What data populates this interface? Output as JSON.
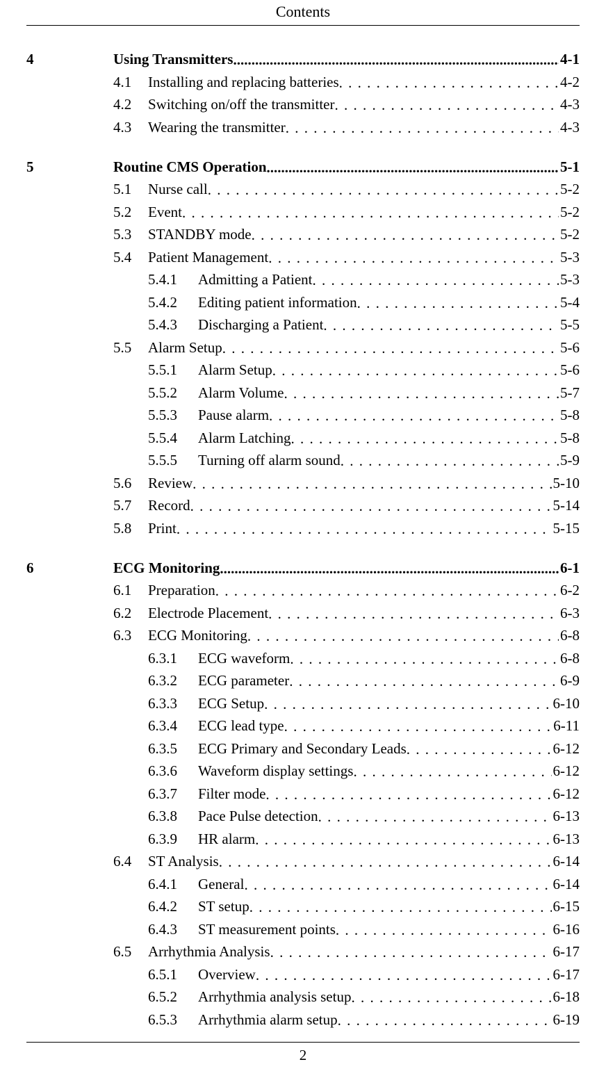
{
  "header": {
    "title": "Contents"
  },
  "footer": {
    "page_number": "2"
  },
  "leader_dots_bold": ".........................................................................................................................................................",
  "leader_dots": ". . . . . . . . . . . . . . . . . . . . . . . . . . . . . . . . . . . . . . . . . . . . . . . . . . . . . . . . . . . . . . . . . . . . . . . . . . . . . . . . . . . . . . . . . . . . . . . .",
  "toc": [
    {
      "level": 0,
      "num": "4",
      "label": "Using Transmitters",
      "page": "4-1"
    },
    {
      "level": 1,
      "num": "4.1",
      "label": "Installing and replacing batteries",
      "page": "4-2"
    },
    {
      "level": 1,
      "num": "4.2",
      "label": "Switching on/off the transmitter",
      "page": "4-3"
    },
    {
      "level": 1,
      "num": "4.3",
      "label": "Wearing the transmitter",
      "page": "4-3"
    },
    {
      "level": 0,
      "num": "5",
      "label": "Routine CMS Operation",
      "page": "5-1"
    },
    {
      "level": 1,
      "num": "5.1",
      "label": "Nurse call",
      "page": "5-2"
    },
    {
      "level": 1,
      "num": "5.2",
      "label": "Event",
      "page": "5-2"
    },
    {
      "level": 1,
      "num": "5.3",
      "label": "STANDBY mode",
      "page": "5-2"
    },
    {
      "level": 1,
      "num": "5.4",
      "label": "Patient Management",
      "page": "5-3"
    },
    {
      "level": 2,
      "num": "5.4.1",
      "label": "Admitting a Patient",
      "page": "5-3"
    },
    {
      "level": 2,
      "num": "5.4.2",
      "label": "Editing patient information",
      "page": "5-4"
    },
    {
      "level": 2,
      "num": "5.4.3",
      "label": "Discharging a Patient",
      "page": "5-5"
    },
    {
      "level": 1,
      "num": "5.5",
      "label": "Alarm Setup",
      "page": "5-6"
    },
    {
      "level": 2,
      "num": "5.5.1",
      "label": "Alarm Setup",
      "page": "5-6"
    },
    {
      "level": 2,
      "num": "5.5.2",
      "label": "Alarm Volume",
      "page": "5-7"
    },
    {
      "level": 2,
      "num": "5.5.3",
      "label": "Pause alarm",
      "page": "5-8"
    },
    {
      "level": 2,
      "num": "5.5.4",
      "label": "Alarm Latching",
      "page": "5-8"
    },
    {
      "level": 2,
      "num": "5.5.5",
      "label": "Turning off alarm sound",
      "page": "5-9"
    },
    {
      "level": 1,
      "num": "5.6",
      "label": "Review",
      "page": "5-10"
    },
    {
      "level": 1,
      "num": "5.7",
      "label": "Record",
      "page": "5-14"
    },
    {
      "level": 1,
      "num": "5.8",
      "label": "Print",
      "page": "5-15"
    },
    {
      "level": 0,
      "num": "6",
      "label": "ECG Monitoring",
      "page": "6-1"
    },
    {
      "level": 1,
      "num": "6.1",
      "label": "Preparation",
      "page": "6-2"
    },
    {
      "level": 1,
      "num": "6.2",
      "label": "Electrode Placement",
      "page": "6-3"
    },
    {
      "level": 1,
      "num": "6.3",
      "label": "ECG Monitoring",
      "page": "6-8"
    },
    {
      "level": 2,
      "num": "6.3.1",
      "label": "ECG waveform",
      "page": "6-8"
    },
    {
      "level": 2,
      "num": "6.3.2",
      "label": "ECG parameter",
      "page": "6-9"
    },
    {
      "level": 2,
      "num": "6.3.3",
      "label": "ECG Setup",
      "page": "6-10"
    },
    {
      "level": 2,
      "num": "6.3.4",
      "label": "ECG lead type",
      "page": "6-11"
    },
    {
      "level": 2,
      "num": "6.3.5",
      "label": "ECG Primary and Secondary Leads",
      "page": "6-12"
    },
    {
      "level": 2,
      "num": "6.3.6",
      "label": "Waveform display settings",
      "page": "6-12"
    },
    {
      "level": 2,
      "num": "6.3.7",
      "label": "Filter mode",
      "page": "6-12"
    },
    {
      "level": 2,
      "num": "6.3.8",
      "label": "Pace Pulse detection",
      "page": "6-13"
    },
    {
      "level": 2,
      "num": "6.3.9",
      "label": "HR alarm",
      "page": "6-13"
    },
    {
      "level": 1,
      "num": "6.4",
      "label": "ST Analysis",
      "page": "6-14"
    },
    {
      "level": 2,
      "num": "6.4.1",
      "label": "General",
      "page": "6-14"
    },
    {
      "level": 2,
      "num": "6.4.2",
      "label": "ST setup",
      "page": "6-15"
    },
    {
      "level": 2,
      "num": "6.4.3",
      "label": "ST measurement points",
      "page": "6-16"
    },
    {
      "level": 1,
      "num": "6.5",
      "label": "Arrhythmia Analysis",
      "page": "6-17"
    },
    {
      "level": 2,
      "num": "6.5.1",
      "label": "Overview",
      "page": "6-17"
    },
    {
      "level": 2,
      "num": "6.5.2",
      "label": "Arrhythmia analysis setup",
      "page": "6-18"
    },
    {
      "level": 2,
      "num": "6.5.3",
      "label": "Arrhythmia alarm setup",
      "page": "6-19"
    }
  ]
}
